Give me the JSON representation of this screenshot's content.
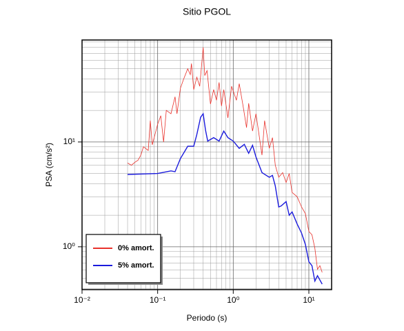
{
  "chart_data": {
    "type": "line",
    "title": "Sitio PGOL",
    "xlabel": "Periodo (s)",
    "ylabel": "PSA (cm/s²)",
    "xscale": "log",
    "yscale": "log",
    "grid": true,
    "legend": "lower left",
    "xlim": [
      0.01,
      20
    ],
    "ylim": [
      0.39,
      94
    ],
    "xticks": [
      {
        "value": 0.01,
        "label": "10⁻²"
      },
      {
        "value": 0.1,
        "label": "10⁻¹"
      },
      {
        "value": 1,
        "label": "10⁰"
      },
      {
        "value": 10,
        "label": "10¹"
      }
    ],
    "yticks": [
      {
        "value": 1,
        "label": "10⁰"
      },
      {
        "value": 10,
        "label": "10¹"
      }
    ],
    "series": [
      {
        "name": "0% amort.",
        "color": "#e8302a",
        "x": [
          0.04,
          0.045,
          0.05,
          0.055,
          0.06,
          0.065,
          0.075,
          0.08,
          0.085,
          0.1,
          0.11,
          0.12,
          0.13,
          0.15,
          0.17,
          0.18,
          0.2,
          0.22,
          0.25,
          0.27,
          0.28,
          0.3,
          0.33,
          0.36,
          0.4,
          0.42,
          0.45,
          0.5,
          0.55,
          0.6,
          0.65,
          0.7,
          0.75,
          0.85,
          0.95,
          1.1,
          1.2,
          1.35,
          1.5,
          1.6,
          1.8,
          2.0,
          2.4,
          2.6,
          3.0,
          3.3,
          3.6,
          4.0,
          4.5,
          5.0,
          5.5,
          6.0,
          7.0,
          8.0,
          9.0,
          10,
          11,
          12,
          13,
          14,
          15
        ],
        "values": [
          6.3,
          6.0,
          6.4,
          6.7,
          7.5,
          9,
          8.3,
          16,
          9.4,
          14.8,
          17.8,
          10,
          20,
          18.6,
          27,
          18.6,
          32.6,
          39.6,
          50,
          44,
          56,
          31.6,
          41.5,
          34,
          80,
          43,
          48,
          23,
          31.6,
          25,
          37,
          22,
          31.6,
          17,
          34,
          25,
          36,
          22,
          13.7,
          23.4,
          12.7,
          18.6,
          7.5,
          16,
          8.7,
          11,
          6,
          4.6,
          5.1,
          4.1,
          5,
          3.3,
          3,
          2.4,
          2.07,
          1.4,
          1.3,
          0.97,
          0.61,
          0.66,
          0.57
        ]
      },
      {
        "name": "5% amort.",
        "color": "#1a1adc",
        "x": [
          0.04,
          0.1,
          0.15,
          0.17,
          0.2,
          0.25,
          0.3,
          0.33,
          0.37,
          0.4,
          0.43,
          0.46,
          0.55,
          0.65,
          0.75,
          0.85,
          1.0,
          1.2,
          1.4,
          1.6,
          1.8,
          2.0,
          2.4,
          3.0,
          3.3,
          3.6,
          4.0,
          4.3,
          5.0,
          5.5,
          6.0,
          7.0,
          8.0,
          9.0,
          10,
          11,
          12,
          13,
          15
        ],
        "values": [
          4.9,
          5.0,
          5.3,
          5.2,
          6.95,
          9.1,
          9.1,
          11.8,
          17.2,
          18.6,
          13,
          10.2,
          11,
          10.2,
          12.7,
          11,
          10.2,
          8.7,
          9.5,
          7.8,
          9.3,
          7.2,
          5.1,
          4.6,
          4.8,
          3.8,
          2.4,
          2.45,
          2.7,
          2.0,
          2.15,
          1.65,
          1.35,
          1.05,
          0.72,
          0.66,
          0.47,
          0.53,
          0.44
        ]
      }
    ]
  }
}
